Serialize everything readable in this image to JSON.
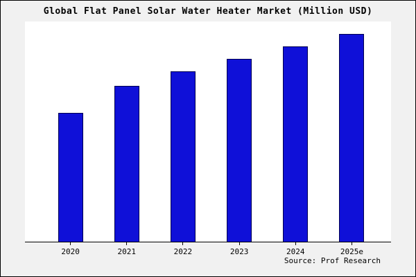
{
  "chart_data": {
    "type": "bar",
    "title": "Global Flat Panel Solar Water Heater Market (Million USD)",
    "categories": [
      "2020",
      "2021",
      "2022",
      "2023",
      "2024",
      "2025e"
    ],
    "values": [
      62,
      75,
      82,
      88,
      94,
      100
    ],
    "xlabel": "",
    "ylabel": "",
    "ylim": [
      0,
      106
    ],
    "grid": false,
    "legend_position": "none",
    "bar_color": "#0f10d8",
    "bar_edge_color": "#000050",
    "source": "Source: Prof Research"
  }
}
